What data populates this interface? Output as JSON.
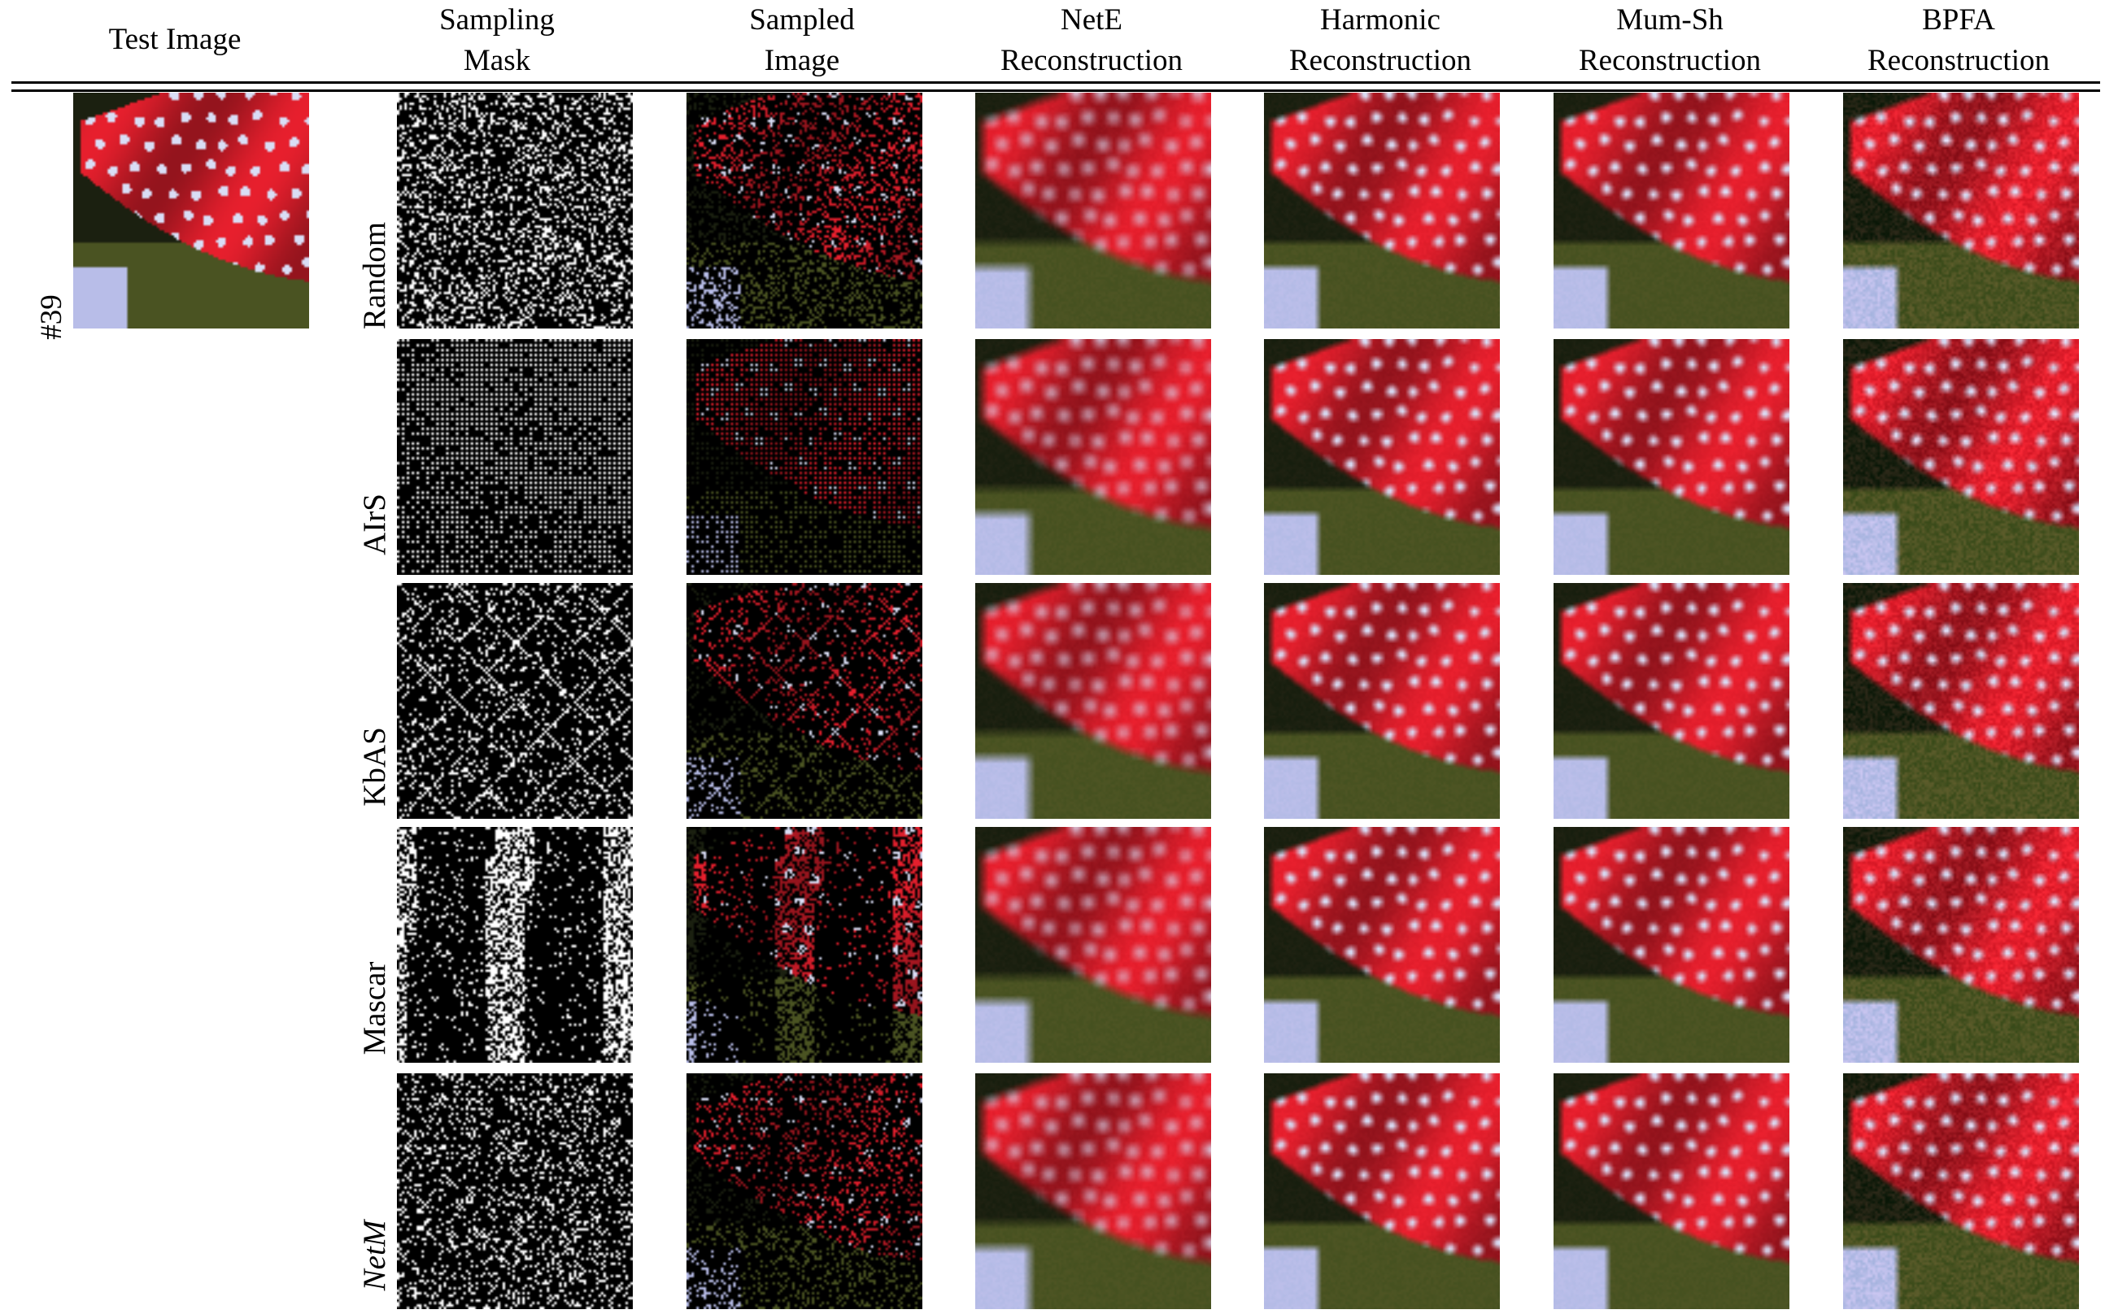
{
  "headers": {
    "test_image": "Test Image",
    "sampling_mask": [
      "Sampling",
      "Mask"
    ],
    "sampled_image": [
      "Sampled",
      "Image"
    ],
    "nete": [
      "NetE",
      "Reconstruction"
    ],
    "harmonic": [
      "Harmonic",
      "Reconstruction"
    ],
    "mumsh": [
      "Mum-Sh",
      "Reconstruction"
    ],
    "bpfa": [
      "BPFA",
      "Reconstruction"
    ]
  },
  "test_image_label": "#39",
  "rows": [
    {
      "label": "Random",
      "italic": false
    },
    {
      "label": "AIrS",
      "italic": false
    },
    {
      "label": "KbAS",
      "italic": false
    },
    {
      "label": "Mascar",
      "italic": false
    },
    {
      "label": "NetM",
      "italic": true
    }
  ],
  "colors": {
    "cloth_red": "#e8202e",
    "dot": "#d9ddf5",
    "background_dark": "#1b2010",
    "foliage": "#4a5322",
    "stem_blue": "#b8bde8",
    "mask_on": "#ffffff",
    "mask_off": "#000000"
  }
}
